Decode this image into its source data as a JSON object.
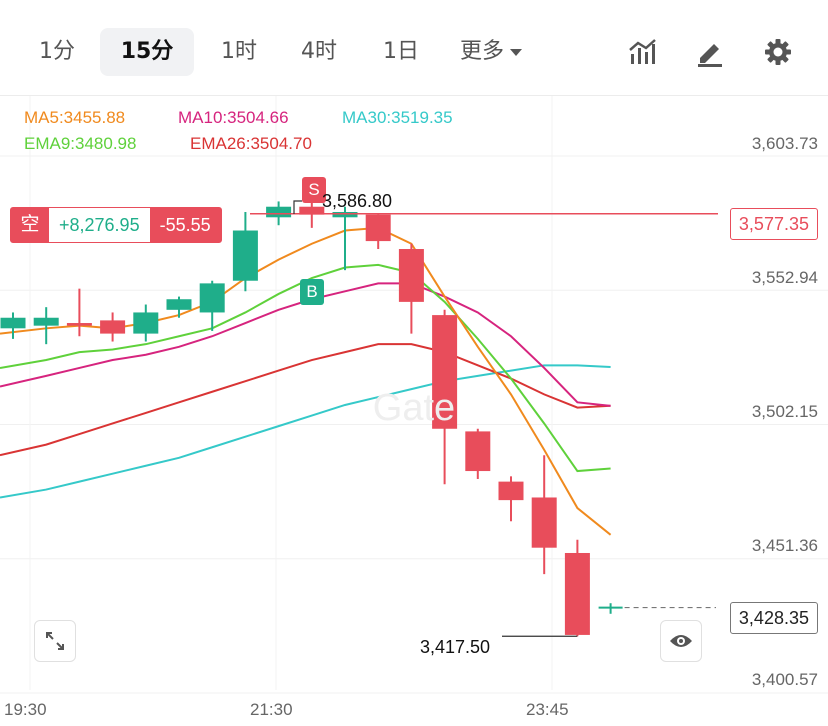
{
  "toolbar": {
    "tabs": [
      {
        "label": "1分",
        "active": false
      },
      {
        "label": "15分",
        "active": true
      },
      {
        "label": "1时",
        "active": false
      },
      {
        "label": "4时",
        "active": false
      },
      {
        "label": "1日",
        "active": false
      }
    ],
    "more_label": "更多",
    "icons": [
      "indicator-icon",
      "draw-pen-icon",
      "settings-gear-icon"
    ]
  },
  "legend": {
    "ma5": "MA5:3455.88",
    "ma10": "MA10:3504.66",
    "ma30": "MA30:3519.35",
    "ema9": "EMA9:3480.98",
    "ema26": "EMA26:3504.70"
  },
  "position": {
    "type": "空",
    "pnl": "+8,276.95",
    "points": "-55.55",
    "price_tag": "3,577.35"
  },
  "markers": {
    "sell": "S",
    "buy": "B"
  },
  "last_price_tag": "3,428.35",
  "colors": {
    "up": "#1fae8a",
    "down": "#e84d5b",
    "ma5": "#f08a1e",
    "ma10": "#d6247e",
    "ma30": "#35c9c9",
    "ema9": "#5fd13b",
    "ema26": "#d93434"
  },
  "chart_data": {
    "type": "candlestick",
    "price_axis": {
      "ticks": [
        "3,603.73",
        "3,552.94",
        "3,502.15",
        "3,451.36",
        "3,400.57"
      ],
      "tick_values": [
        3603.73,
        3552.94,
        3502.15,
        3451.36,
        3400.57
      ]
    },
    "time_axis": {
      "ticks": [
        "19:30",
        "21:30",
        "23:45"
      ]
    },
    "annotations": {
      "high_label": "3,586.80",
      "low_label": "3,417.50",
      "high": 3586.8,
      "low": 3417.5,
      "position_price": 3577.35,
      "last": 3428.35
    },
    "candles": [
      {
        "o": 3534,
        "c": 3538,
        "h": 3540,
        "l": 3530
      },
      {
        "o": 3535,
        "c": 3538,
        "h": 3542,
        "l": 3528
      },
      {
        "o": 3536,
        "c": 3535,
        "h": 3549,
        "l": 3531
      },
      {
        "o": 3537,
        "c": 3532,
        "h": 3540,
        "l": 3529
      },
      {
        "o": 3532,
        "c": 3540,
        "h": 3543,
        "l": 3529
      },
      {
        "o": 3541,
        "c": 3545,
        "h": 3546,
        "l": 3538
      },
      {
        "o": 3540,
        "c": 3551,
        "h": 3552,
        "l": 3533
      },
      {
        "o": 3552,
        "c": 3571,
        "h": 3578,
        "l": 3548
      },
      {
        "o": 3576,
        "c": 3580,
        "h": 3582,
        "l": 3573
      },
      {
        "o": 3580,
        "c": 3577,
        "h": 3587,
        "l": 3572
      },
      {
        "o": 3576,
        "c": 3578,
        "h": 3580,
        "l": 3556
      },
      {
        "o": 3577,
        "c": 3567,
        "h": 3577,
        "l": 3564
      },
      {
        "o": 3564,
        "c": 3544,
        "h": 3566,
        "l": 3532
      },
      {
        "o": 3539,
        "c": 3496,
        "h": 3541,
        "l": 3475
      },
      {
        "o": 3495,
        "c": 3480,
        "h": 3496,
        "l": 3477
      },
      {
        "o": 3476,
        "c": 3469,
        "h": 3478,
        "l": 3461
      },
      {
        "o": 3470,
        "c": 3451,
        "h": 3486,
        "l": 3441
      },
      {
        "o": 3449,
        "c": 3418,
        "h": 3454,
        "l": 3417.5
      },
      {
        "o": 3428.35,
        "c": 3428.35,
        "h": 3430,
        "l": 3426
      }
    ],
    "ma_lines": {
      "ma5": [
        3532,
        3534,
        3535,
        3534,
        3536,
        3539,
        3544,
        3553,
        3560,
        3566,
        3571,
        3572,
        3566,
        3546,
        3527,
        3509,
        3488,
        3466,
        3455.88
      ],
      "ma10": [
        3512,
        3516,
        3519,
        3522,
        3524,
        3527,
        3531,
        3536,
        3541,
        3545,
        3548,
        3551,
        3551,
        3546,
        3540,
        3531,
        3519,
        3506,
        3504.66
      ],
      "ema9": [
        3519,
        3522,
        3525,
        3526,
        3528,
        3531,
        3534,
        3540,
        3547,
        3553,
        3557,
        3558,
        3555,
        3544,
        3530,
        3515,
        3498,
        3480,
        3480.98
      ],
      "ema26": [
        3486,
        3490,
        3494,
        3498,
        3502,
        3506,
        3510,
        3514,
        3518,
        3522,
        3525,
        3528,
        3528,
        3525,
        3520,
        3515,
        3509,
        3504,
        3504.7
      ],
      "ma30": [
        3470,
        3473,
        3476,
        3479,
        3482,
        3485,
        3489,
        3493,
        3497,
        3501,
        3505,
        3508,
        3511,
        3514,
        3516,
        3518,
        3520,
        3520,
        3519.35
      ]
    }
  }
}
